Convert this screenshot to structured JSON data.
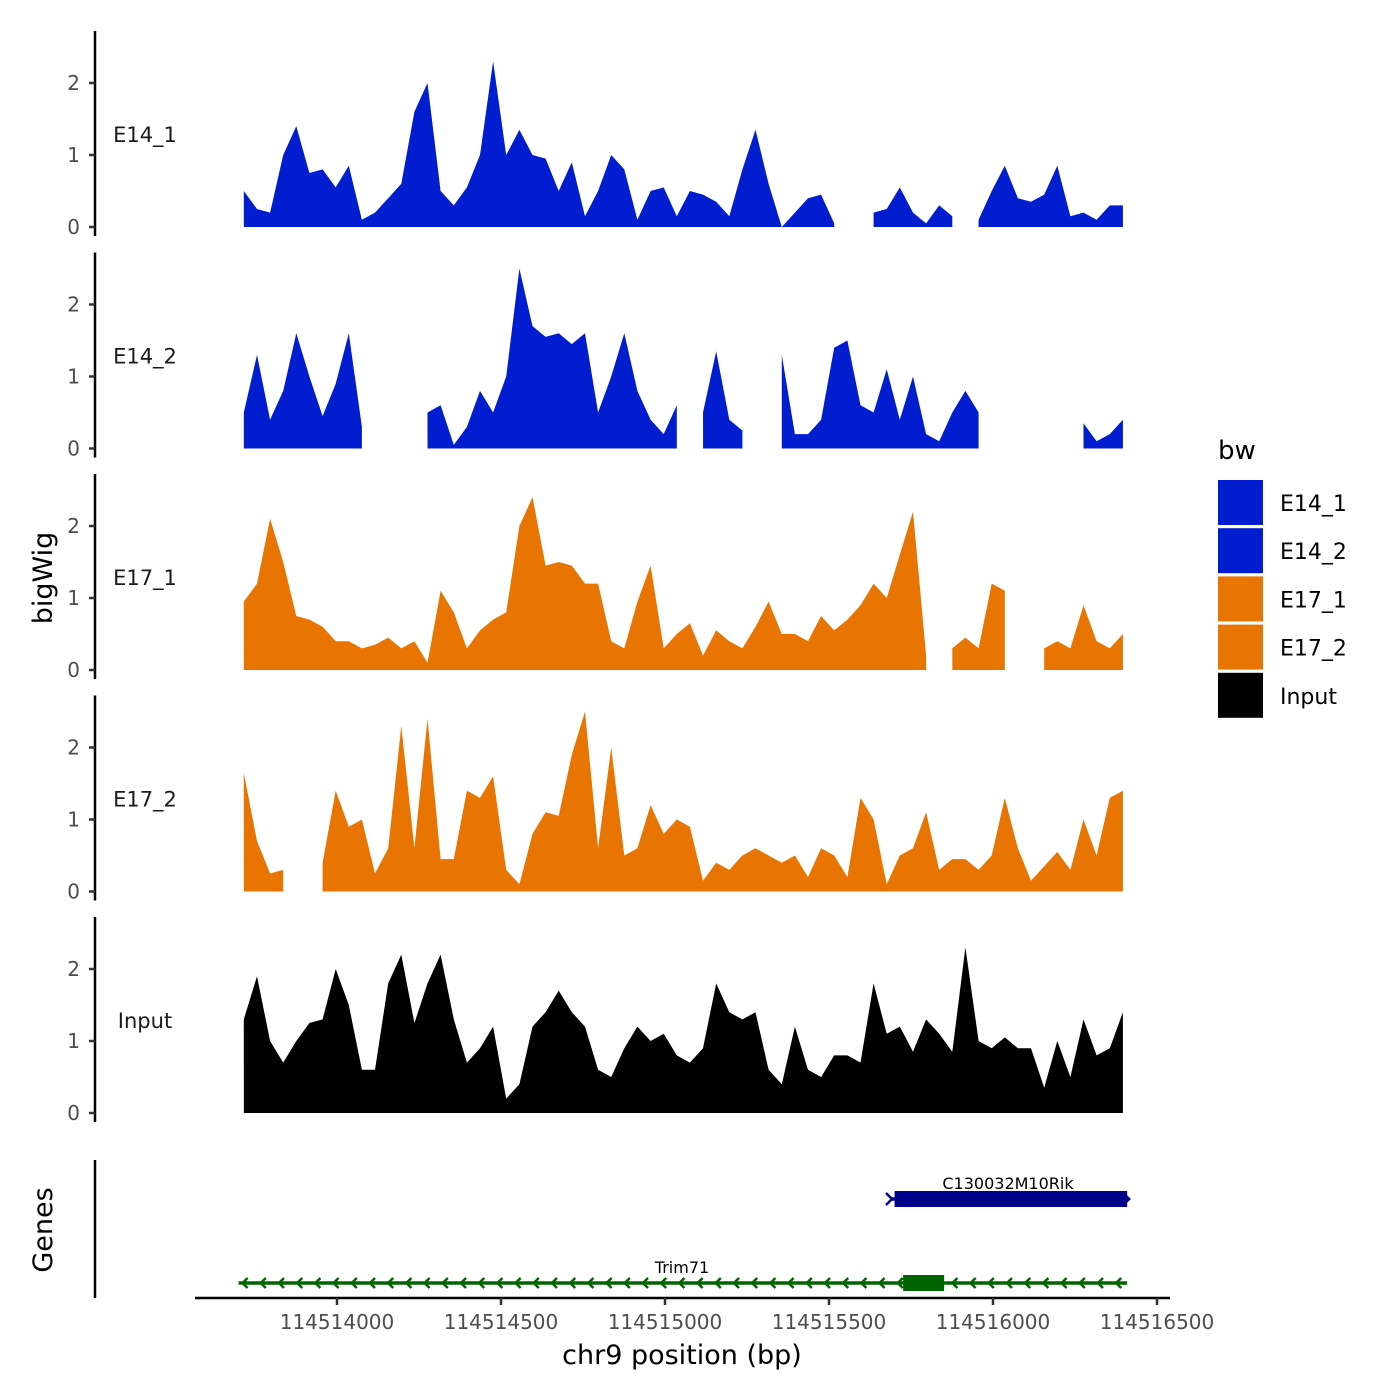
{
  "chart_data": {
    "type": "area",
    "ylabel": "bigWig",
    "xlabel": "chr9 position (bp)",
    "genes_label": "Genes",
    "x_ticks": [
      114514000,
      114514500,
      114515000,
      114515500,
      114516000,
      114516500
    ],
    "x_tick_labels": [
      "114514000",
      "114514500",
      "114515000",
      "114515500",
      "114516000",
      "114516500"
    ],
    "y_ticks": [
      0,
      1,
      2
    ],
    "y_tick_labels": [
      "0",
      "1",
      "2"
    ],
    "ylim": [
      0,
      2.7
    ],
    "x_start": 114513716,
    "x_step": 40,
    "legend": {
      "title": "bw",
      "placement": "right",
      "entries": [
        {
          "label": "E14_1",
          "color": "#001ECF"
        },
        {
          "label": "E14_2",
          "color": "#001ECF"
        },
        {
          "label": "E17_1",
          "color": "#E87502"
        },
        {
          "label": "E17_2",
          "color": "#E87502"
        },
        {
          "label": "Input",
          "color": "#000000"
        }
      ]
    },
    "series": [
      {
        "name": "E14_1",
        "color": "#001ECF",
        "values": [
          0.5,
          0.25,
          0.2,
          1.0,
          1.4,
          0.75,
          0.8,
          0.55,
          0.85,
          0.1,
          0.2,
          0.4,
          0.6,
          1.6,
          2.0,
          0.5,
          0.3,
          0.55,
          1.0,
          2.3,
          1.0,
          1.35,
          1.0,
          0.95,
          0.5,
          0.9,
          0.15,
          0.5,
          1.0,
          0.8,
          0.1,
          0.5,
          0.55,
          0.15,
          0.5,
          0.45,
          0.35,
          0.15,
          0.8,
          1.35,
          0.6,
          0,
          0.2,
          0.4,
          0.45,
          0.05,
          null,
          null,
          0.2,
          0.25,
          0.55,
          0.2,
          0.05,
          0.3,
          0.15,
          null,
          0.1,
          0.5,
          0.85,
          0.4,
          0.35,
          0.45,
          0.85,
          0.15,
          0.2,
          0.1,
          0.3,
          0.3
        ]
      },
      {
        "name": "E14_2",
        "color": "#001ECF",
        "values": [
          0.5,
          1.3,
          0.4,
          0.8,
          1.6,
          1.0,
          0.45,
          0.9,
          1.6,
          0.3,
          null,
          null,
          null,
          null,
          0.5,
          0.6,
          0.05,
          0.3,
          0.8,
          0.5,
          1.0,
          2.5,
          1.7,
          1.55,
          1.6,
          1.45,
          1.6,
          0.5,
          1.0,
          1.6,
          0.8,
          0.4,
          0.2,
          0.6,
          null,
          0.5,
          1.35,
          0.4,
          0.25,
          null,
          null,
          1.3,
          0.2,
          0.2,
          0.4,
          1.4,
          1.5,
          0.6,
          0.5,
          1.1,
          0.4,
          1.0,
          0.2,
          0.1,
          0.5,
          0.8,
          0.5,
          null,
          null,
          null,
          null,
          null,
          null,
          null,
          0.35,
          0.1,
          0.2,
          0.4
        ]
      },
      {
        "name": "E17_1",
        "color": "#E87502",
        "values": [
          0.95,
          1.2,
          2.1,
          1.5,
          0.75,
          0.7,
          0.6,
          0.4,
          0.4,
          0.3,
          0.35,
          0.45,
          0.3,
          0.4,
          0.1,
          1.1,
          0.8,
          0.3,
          0.55,
          0.7,
          0.8,
          2.0,
          2.4,
          1.45,
          1.5,
          1.45,
          1.2,
          1.2,
          0.4,
          0.3,
          0.95,
          1.45,
          0.3,
          0.5,
          0.65,
          0.2,
          0.55,
          0.4,
          0.3,
          0.6,
          0.95,
          0.5,
          0.5,
          0.4,
          0.75,
          0.55,
          0.7,
          0.9,
          1.2,
          1.0,
          1.6,
          2.2,
          0.2,
          null,
          0.3,
          0.45,
          0.3,
          1.2,
          1.1,
          null,
          null,
          0.3,
          0.4,
          0.3,
          0.9,
          0.4,
          0.3,
          0.5
        ]
      },
      {
        "name": "E17_2",
        "color": "#E87502",
        "values": [
          1.65,
          0.7,
          0.25,
          0.3,
          null,
          null,
          0.4,
          1.4,
          0.9,
          1.0,
          0.25,
          0.6,
          2.3,
          0.6,
          2.4,
          0.45,
          0.45,
          1.4,
          1.3,
          1.6,
          0.3,
          0.1,
          0.8,
          1.1,
          1.05,
          1.9,
          2.5,
          0.6,
          2.0,
          0.5,
          0.6,
          1.2,
          0.8,
          1.0,
          0.9,
          0.15,
          0.4,
          0.3,
          0.5,
          0.6,
          0.5,
          0.4,
          0.5,
          0.2,
          0.6,
          0.5,
          0.2,
          1.3,
          1.0,
          0.1,
          0.5,
          0.6,
          1.1,
          0.3,
          0.45,
          0.45,
          0.3,
          0.5,
          1.3,
          0.6,
          0.15,
          0.35,
          0.55,
          0.3,
          1.0,
          0.5,
          1.3,
          1.4
        ]
      },
      {
        "name": "Input",
        "color": "#000000",
        "values": [
          1.3,
          1.9,
          1.0,
          0.7,
          1.0,
          1.25,
          1.3,
          2.0,
          1.5,
          0.6,
          0.6,
          1.8,
          2.2,
          1.25,
          1.8,
          2.2,
          1.3,
          0.7,
          0.9,
          1.2,
          0.2,
          0.4,
          1.2,
          1.4,
          1.7,
          1.4,
          1.2,
          0.6,
          0.5,
          0.9,
          1.2,
          1.0,
          1.1,
          0.8,
          0.7,
          0.9,
          1.8,
          1.4,
          1.3,
          1.4,
          0.6,
          0.4,
          1.2,
          0.6,
          0.5,
          0.8,
          0.8,
          0.7,
          1.8,
          1.1,
          1.2,
          0.85,
          1.3,
          1.1,
          0.85,
          2.3,
          1.0,
          0.9,
          1.05,
          0.9,
          0.9,
          0.35,
          1.0,
          0.5,
          1.3,
          0.8,
          0.9,
          1.4
        ]
      }
    ],
    "genes": [
      {
        "name": "C130032M10Rik",
        "strand": "+",
        "start": 114515686,
        "end": 114516409,
        "color": "#00008B",
        "exons": [
          [
            114515700,
            114516409
          ]
        ]
      },
      {
        "name": "Trim71",
        "strand": "-",
        "start": 114513700,
        "end": 114516409,
        "color": "#006400",
        "exons": [
          [
            114515726,
            114515851
          ]
        ]
      }
    ]
  }
}
